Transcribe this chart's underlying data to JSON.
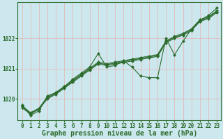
{
  "xlabel": "Graphe pression niveau de la mer (hPa)",
  "hours": [
    0,
    1,
    2,
    3,
    4,
    5,
    6,
    7,
    8,
    9,
    10,
    11,
    12,
    13,
    14,
    15,
    16,
    17,
    18,
    19,
    20,
    21,
    22,
    23
  ],
  "series_parallel": [
    [
      1019.7,
      1019.5,
      1019.65,
      1020.0,
      1020.15,
      1020.35,
      1020.55,
      1020.75,
      1020.95,
      1021.15,
      1021.1,
      1021.15,
      1021.2,
      1021.25,
      1021.3,
      1021.35,
      1021.4,
      1021.85,
      1022.0,
      1022.1,
      1022.25,
      1022.55,
      1022.65,
      1022.85
    ],
    [
      1019.75,
      1019.52,
      1019.67,
      1020.03,
      1020.18,
      1020.38,
      1020.58,
      1020.78,
      1020.98,
      1021.18,
      1021.13,
      1021.18,
      1021.23,
      1021.28,
      1021.33,
      1021.38,
      1021.43,
      1021.88,
      1022.03,
      1022.13,
      1022.28,
      1022.58,
      1022.68,
      1022.88
    ],
    [
      1019.78,
      1019.54,
      1019.69,
      1020.06,
      1020.21,
      1020.41,
      1020.61,
      1020.81,
      1021.01,
      1021.21,
      1021.16,
      1021.21,
      1021.26,
      1021.31,
      1021.36,
      1021.41,
      1021.46,
      1021.91,
      1022.06,
      1022.16,
      1022.31,
      1022.61,
      1022.71,
      1022.91
    ]
  ],
  "series_outlier": [
    1019.8,
    1019.45,
    1019.6,
    1020.1,
    1020.2,
    1020.4,
    1020.65,
    1020.85,
    1021.05,
    1021.5,
    1021.05,
    1021.1,
    1021.25,
    1021.05,
    1020.75,
    1020.7,
    1020.7,
    1022.0,
    1021.45,
    1021.9,
    1022.3,
    1022.6,
    1022.75,
    1023.0
  ],
  "line_color": "#2d6b2d",
  "bg_color": "#cce8ee",
  "grid_color": "#e8b0b0",
  "ylim": [
    1019.3,
    1023.2
  ],
  "yticks": [
    1020,
    1021,
    1022
  ],
  "xlim": [
    -0.5,
    23.5
  ],
  "xticks": [
    0,
    1,
    2,
    3,
    4,
    5,
    6,
    7,
    8,
    9,
    10,
    11,
    12,
    13,
    14,
    15,
    16,
    17,
    18,
    19,
    20,
    21,
    22,
    23
  ],
  "tick_fontsize": 5.5,
  "label_fontsize": 7.0,
  "line_width": 0.8,
  "marker_size": 2.2
}
